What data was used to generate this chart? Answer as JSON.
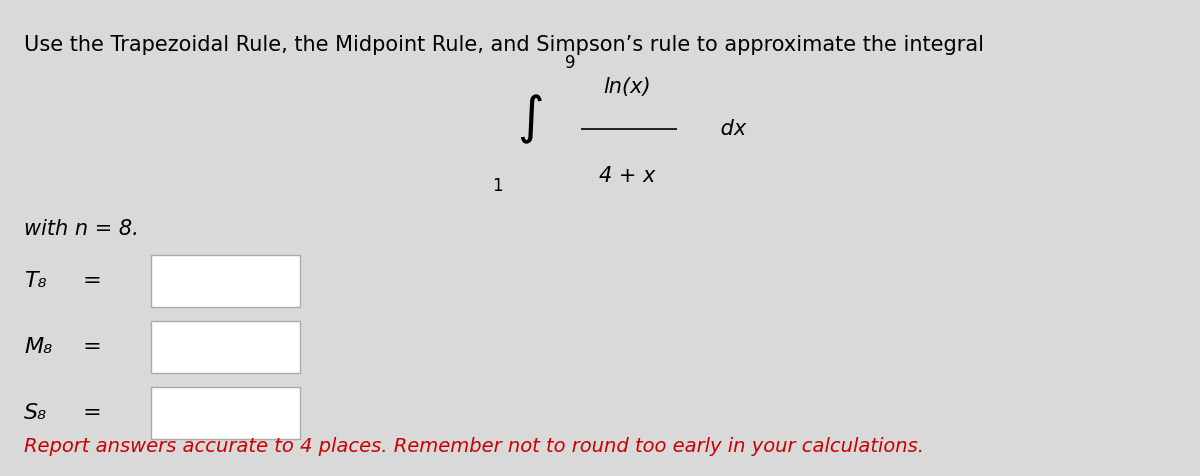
{
  "bg_color": "#d9d9d9",
  "title_line": "Use the Trapezoidal Rule, the Midpoint Rule, and Simpson’s rule to approximate the integral",
  "integral_upper": "9",
  "integral_lower": "1",
  "integral_numerator": "ln(x)",
  "integral_denominator": "4 + x",
  "integral_dx": "dx",
  "with_n_text": "with n = 8.",
  "labels": [
    "T₈ =",
    "M₈ =",
    "S₈ ="
  ],
  "footer_text": "Report answers accurate to 4 places. Remember not to round too early in your calculations.",
  "footer_color": "#cc0000",
  "box_color": "#ffffff",
  "box_edge_color": "#aaaaaa",
  "text_color": "#000000",
  "title_fontsize": 15,
  "body_fontsize": 15,
  "footer_fontsize": 14
}
